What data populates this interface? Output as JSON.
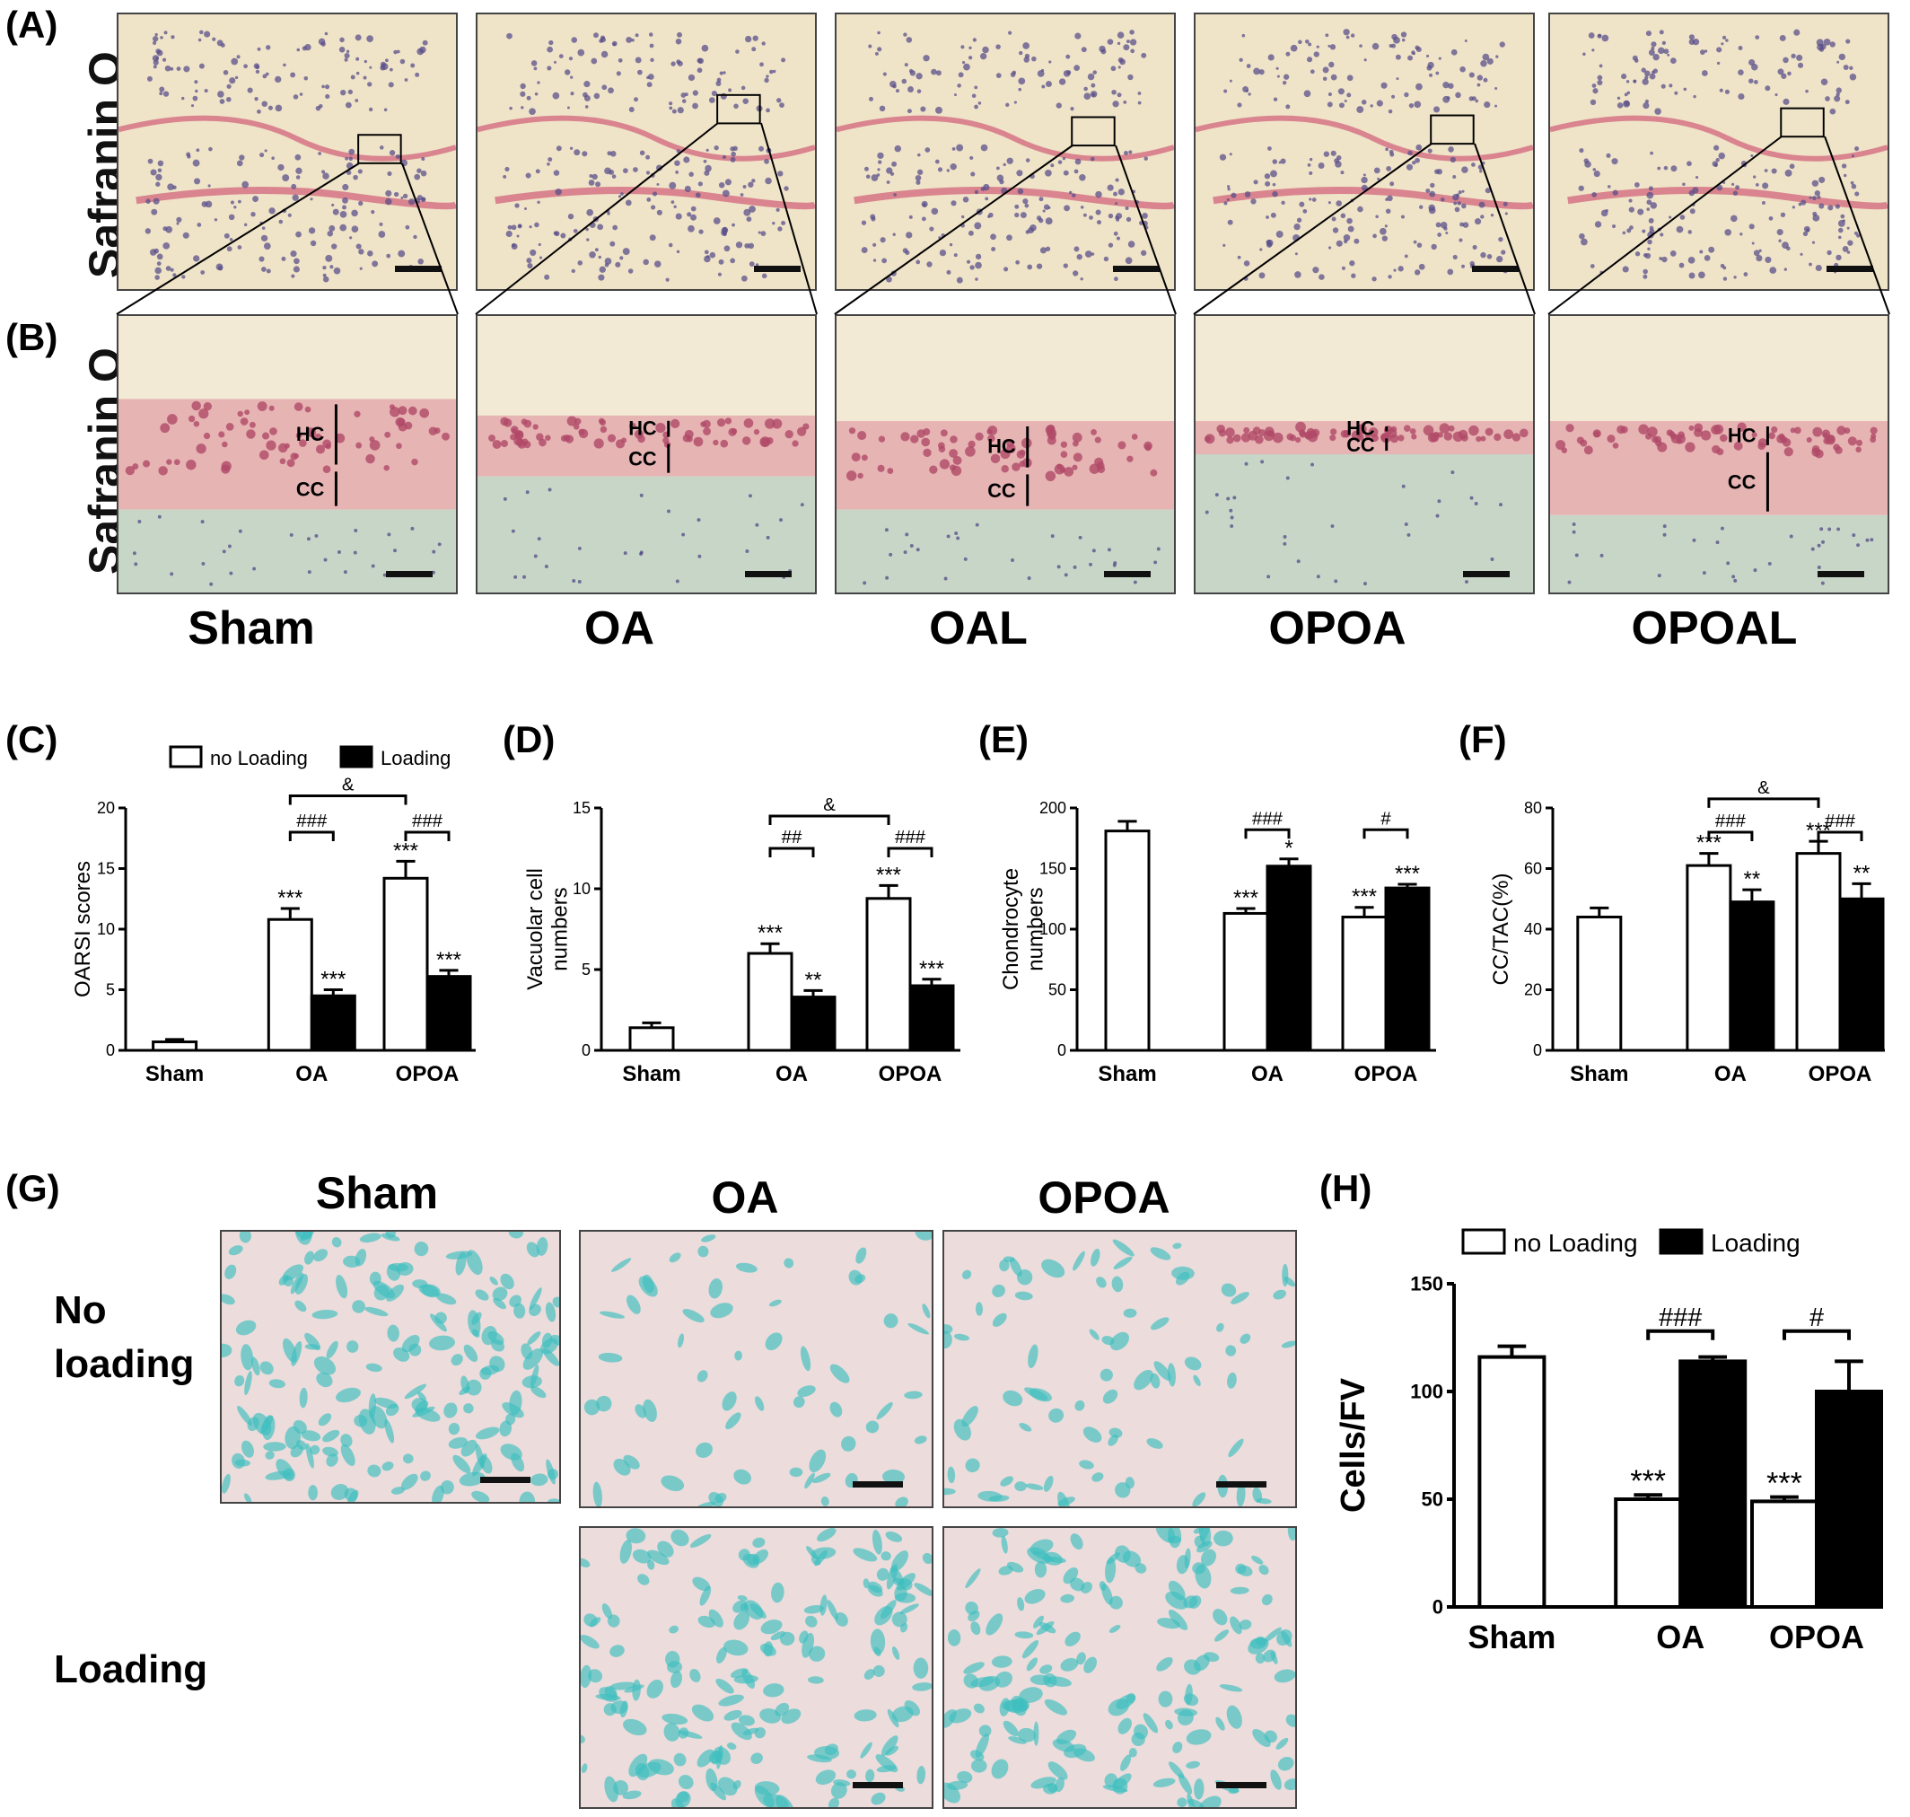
{
  "panel_labels": [
    "(A)",
    "(B)",
    "(C)",
    "(D)",
    "(E)",
    "(F)",
    "(G)",
    "(H)"
  ],
  "histology": {
    "row_label": "Safranin O",
    "groups": [
      "Sham",
      "OA",
      "OAL",
      "OPOA",
      "OPOAL"
    ],
    "zone_labels": {
      "hc": "HC",
      "cc": "CC"
    },
    "colors": {
      "tissue": "#efe3c8",
      "marrow": "#5a4f8a",
      "cartilage": "#d9848e",
      "matrix": "#c8d6c8"
    }
  },
  "cell_staining": {
    "groups": [
      "Sham",
      "OA",
      "OPOA"
    ],
    "rows": [
      "No\nloading",
      "Loading"
    ],
    "colors": {
      "background": "#ecdcdc",
      "cell": "#3ebfbf"
    }
  },
  "chart_data": [
    {
      "type": "bar",
      "panel": "(C)",
      "ylabel": "OARSI scores",
      "ylim": [
        0,
        20
      ],
      "yticks": [
        0,
        5,
        10,
        15,
        20
      ],
      "categories": [
        "Sham",
        "OA",
        "OPOA"
      ],
      "legend": [
        "no Loading",
        "Loading"
      ],
      "bars": [
        {
          "group": "Sham",
          "series": "no Loading",
          "value": 0.7,
          "err": 0.2,
          "sig": ""
        },
        {
          "group": "OA",
          "series": "no Loading",
          "value": 10.8,
          "err": 0.9,
          "sig": "***"
        },
        {
          "group": "OA",
          "series": "Loading",
          "value": 4.5,
          "err": 0.5,
          "sig": "***"
        },
        {
          "group": "OPOA",
          "series": "no Loading",
          "value": 14.2,
          "err": 1.4,
          "sig": "***"
        },
        {
          "group": "OPOA",
          "series": "Loading",
          "value": 6.1,
          "err": 0.5,
          "sig": "***"
        }
      ],
      "brackets": [
        {
          "label": "###",
          "from": 1,
          "to": 2,
          "y": 18.0
        },
        {
          "label": "###",
          "from": 3,
          "to": 4,
          "y": 18.0
        },
        {
          "label": "&",
          "from": 1,
          "to": 3,
          "y": 21.0
        }
      ]
    },
    {
      "type": "bar",
      "panel": "(D)",
      "ylabel": "Vacuolar cell\nnumbers",
      "ylim": [
        0,
        15
      ],
      "yticks": [
        0,
        5,
        10,
        15
      ],
      "categories": [
        "Sham",
        "OA",
        "OPOA"
      ],
      "bars": [
        {
          "group": "Sham",
          "series": "no Loading",
          "value": 1.4,
          "err": 0.3,
          "sig": ""
        },
        {
          "group": "OA",
          "series": "no Loading",
          "value": 6.0,
          "err": 0.6,
          "sig": "***"
        },
        {
          "group": "OA",
          "series": "Loading",
          "value": 3.3,
          "err": 0.4,
          "sig": "**"
        },
        {
          "group": "OPOA",
          "series": "no Loading",
          "value": 9.4,
          "err": 0.8,
          "sig": "***"
        },
        {
          "group": "OPOA",
          "series": "Loading",
          "value": 4.0,
          "err": 0.4,
          "sig": "***"
        }
      ],
      "brackets": [
        {
          "label": "##",
          "from": 1,
          "to": 2,
          "y": 12.5
        },
        {
          "label": "###",
          "from": 3,
          "to": 4,
          "y": 12.5
        },
        {
          "label": "&",
          "from": 1,
          "to": 3,
          "y": 14.5
        }
      ]
    },
    {
      "type": "bar",
      "panel": "(E)",
      "ylabel": "Chondrocyte\nnumbers",
      "ylim": [
        0,
        200
      ],
      "yticks": [
        0,
        50,
        100,
        150,
        200
      ],
      "categories": [
        "Sham",
        "OA",
        "OPOA"
      ],
      "bars": [
        {
          "group": "Sham",
          "series": "no Loading",
          "value": 181,
          "err": 8,
          "sig": ""
        },
        {
          "group": "OA",
          "series": "no Loading",
          "value": 113,
          "err": 4,
          "sig": "***"
        },
        {
          "group": "OA",
          "series": "Loading",
          "value": 152,
          "err": 6,
          "sig": "*"
        },
        {
          "group": "OPOA",
          "series": "no Loading",
          "value": 110,
          "err": 8,
          "sig": "***"
        },
        {
          "group": "OPOA",
          "series": "Loading",
          "value": 134,
          "err": 3,
          "sig": "***"
        }
      ],
      "brackets": [
        {
          "label": "###",
          "from": 1,
          "to": 2,
          "y": 182
        },
        {
          "label": "#",
          "from": 3,
          "to": 4,
          "y": 182
        }
      ]
    },
    {
      "type": "bar",
      "panel": "(F)",
      "ylabel": "CC/TAC(%)",
      "ylim": [
        0,
        80
      ],
      "yticks": [
        0,
        20,
        40,
        60,
        80
      ],
      "categories": [
        "Sham",
        "OA",
        "OPOA"
      ],
      "bars": [
        {
          "group": "Sham",
          "series": "no Loading",
          "value": 44,
          "err": 3,
          "sig": ""
        },
        {
          "group": "OA",
          "series": "no Loading",
          "value": 61,
          "err": 4,
          "sig": "***"
        },
        {
          "group": "OA",
          "series": "Loading",
          "value": 49,
          "err": 4,
          "sig": "**"
        },
        {
          "group": "OPOA",
          "series": "no Loading",
          "value": 65,
          "err": 4,
          "sig": "***"
        },
        {
          "group": "OPOA",
          "series": "Loading",
          "value": 50,
          "err": 5,
          "sig": "**"
        }
      ],
      "brackets": [
        {
          "label": "###",
          "from": 1,
          "to": 2,
          "y": 72
        },
        {
          "label": "###",
          "from": 3,
          "to": 4,
          "y": 72
        },
        {
          "label": "&",
          "from": 1,
          "to": 3,
          "y": 83
        }
      ]
    },
    {
      "type": "bar",
      "panel": "(H)",
      "ylabel": "Cells/FV",
      "ylim": [
        0,
        150
      ],
      "yticks": [
        0,
        50,
        100,
        150
      ],
      "categories": [
        "Sham",
        "OA",
        "OPOA"
      ],
      "legend": [
        "no Loading",
        "Loading"
      ],
      "bars": [
        {
          "group": "Sham",
          "series": "no Loading",
          "value": 116,
          "err": 5,
          "sig": ""
        },
        {
          "group": "OA",
          "series": "no Loading",
          "value": 50,
          "err": 2,
          "sig": "***"
        },
        {
          "group": "OA",
          "series": "Loading",
          "value": 114,
          "err": 2,
          "sig": ""
        },
        {
          "group": "OPOA",
          "series": "no Loading",
          "value": 49,
          "err": 2,
          "sig": "***"
        },
        {
          "group": "OPOA",
          "series": "Loading",
          "value": 100,
          "err": 14,
          "sig": ""
        }
      ],
      "brackets": [
        {
          "label": "###",
          "from": 1,
          "to": 2,
          "y": 128
        },
        {
          "label": "#",
          "from": 3,
          "to": 4,
          "y": 128
        }
      ]
    }
  ]
}
